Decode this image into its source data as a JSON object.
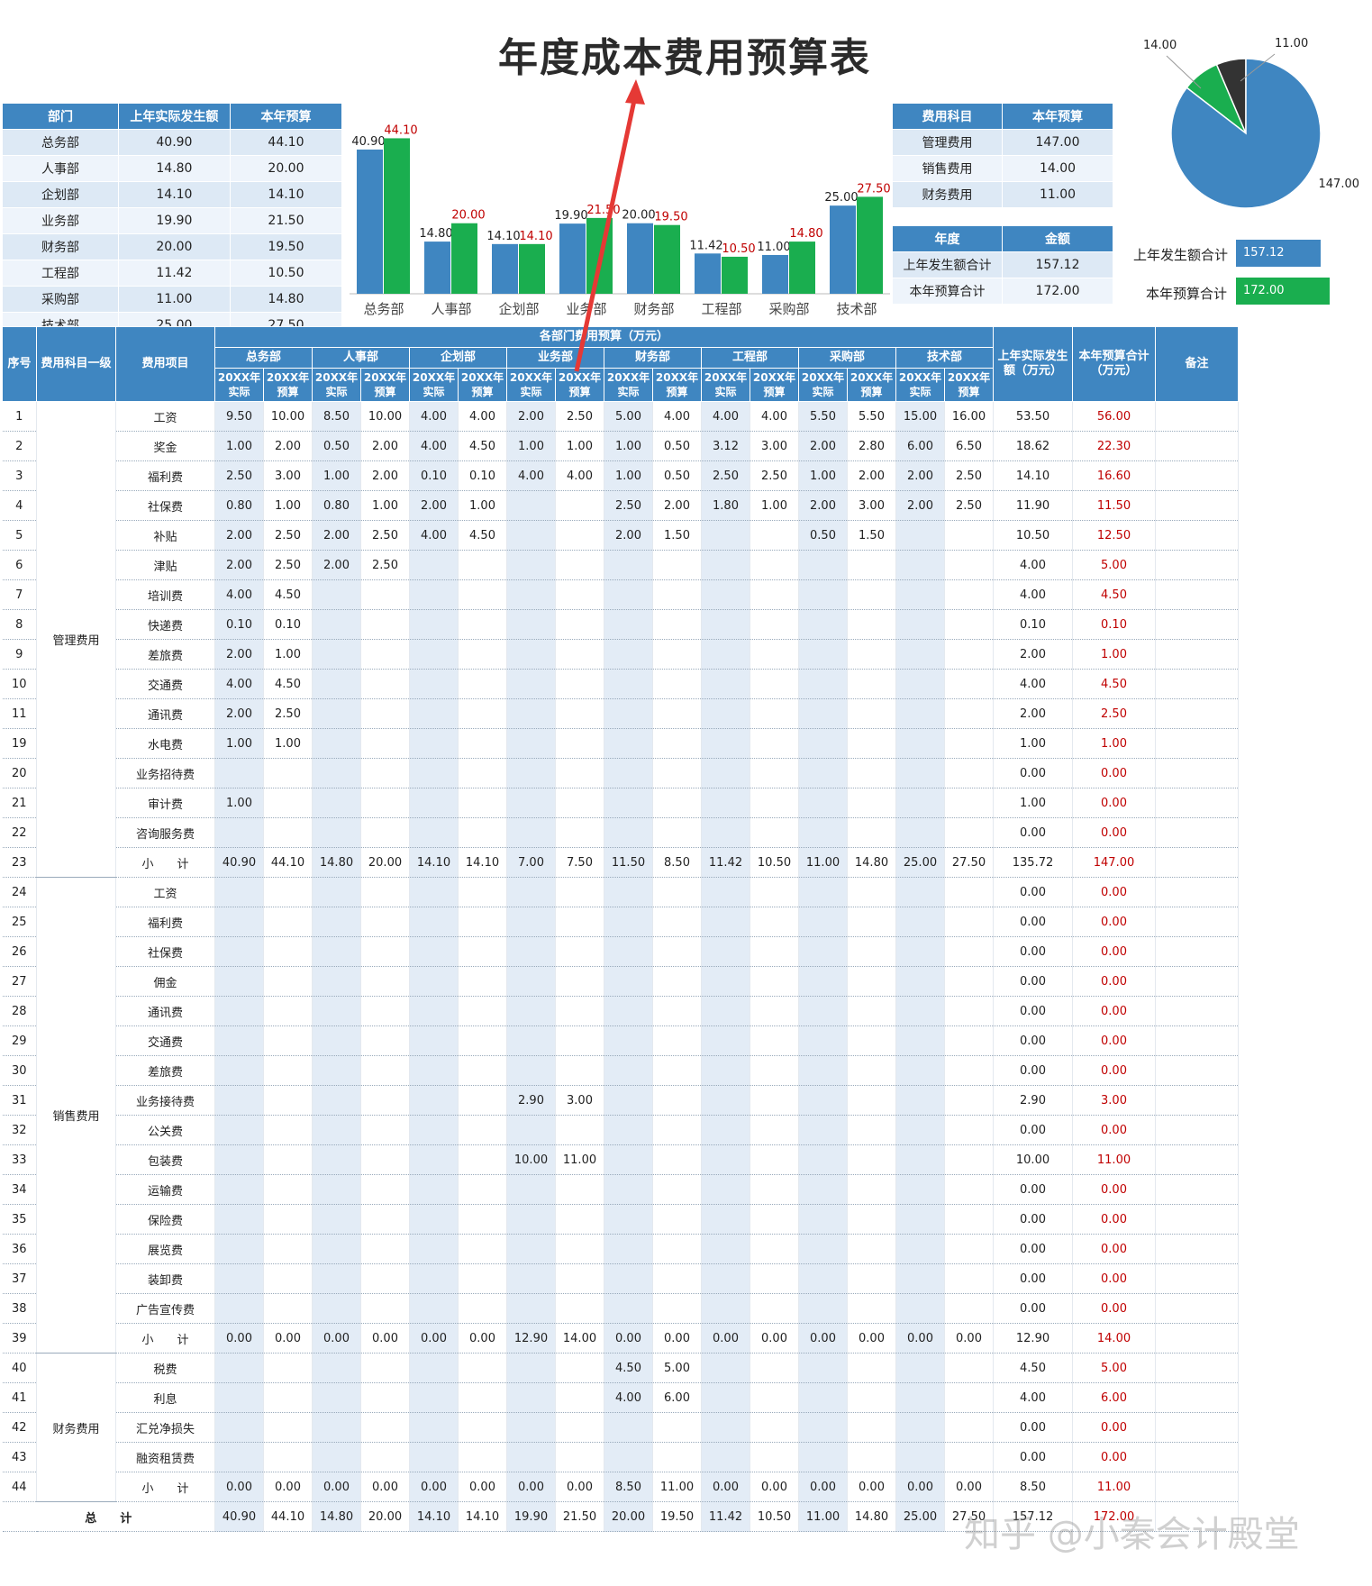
{
  "title": "年度成本费用预算表",
  "dept_table": {
    "headers": [
      "部门",
      "上年实际发生额",
      "本年预算"
    ],
    "rows": [
      [
        "总务部",
        "40.90",
        "44.10"
      ],
      [
        "人事部",
        "14.80",
        "20.00"
      ],
      [
        "企划部",
        "14.10",
        "14.10"
      ],
      [
        "业务部",
        "19.90",
        "21.50"
      ],
      [
        "财务部",
        "20.00",
        "19.50"
      ],
      [
        "工程部",
        "11.42",
        "10.50"
      ],
      [
        "采购部",
        "11.00",
        "14.80"
      ],
      [
        "技术部",
        "25.00",
        "27.50"
      ]
    ]
  },
  "chart_data": [
    {
      "type": "bar",
      "categories": [
        "总务部",
        "人事部",
        "企划部",
        "业务部",
        "财务部",
        "工程部",
        "采购部",
        "技术部"
      ],
      "series": [
        {
          "name": "上年实际发生额",
          "values": [
            40.9,
            14.8,
            14.1,
            19.9,
            20.0,
            11.42,
            11.0,
            25.0
          ],
          "labels": [
            "40.90",
            "14.80",
            "14.10",
            "19.90",
            "20.00",
            "11.42",
            "11.00",
            "25.00"
          ],
          "color": "#3f86c1"
        },
        {
          "name": "本年预算",
          "values": [
            44.1,
            20.0,
            14.1,
            21.5,
            19.5,
            10.5,
            14.8,
            27.5
          ],
          "labels": [
            "44.10",
            "20.00",
            "14.10",
            "21.50",
            "19.50",
            "10.50",
            "14.80",
            "27.50"
          ],
          "color": "#1aae4f"
        }
      ],
      "ylim": [
        0,
        46
      ],
      "grid": false,
      "title": "",
      "xlabel": "",
      "ylabel": ""
    },
    {
      "type": "pie",
      "categories": [
        "管理费用",
        "销售费用",
        "财务费用"
      ],
      "values": [
        147.0,
        14.0,
        11.0
      ],
      "labels": [
        "147.00",
        "14.00",
        "11.00"
      ],
      "colors": [
        "#3f86c1",
        "#1aae4f",
        "#333333"
      ],
      "title": ""
    }
  ],
  "subject_table": {
    "headers": [
      "费用科目",
      "本年预算"
    ],
    "rows": [
      [
        "管理费用",
        "147.00"
      ],
      [
        "销售费用",
        "14.00"
      ],
      [
        "财务费用",
        "11.00"
      ]
    ]
  },
  "year_table": {
    "headers": [
      "年度",
      "金额"
    ],
    "rows": [
      [
        "上年发生额合计",
        "157.12"
      ],
      [
        "本年预算合计",
        "172.00"
      ]
    ]
  },
  "totals": {
    "prev_label": "上年发生额合计",
    "prev_value": "157.12",
    "prev_color": "#3f86c1",
    "budget_label": "本年预算合计",
    "budget_value": "172.00",
    "budget_color": "#1aae4f"
  },
  "main": {
    "h_seq": "序号",
    "h_subject": "费用科目一级",
    "h_item": "费用项目",
    "h_group": "各部门费用预算（万元）",
    "h_prev": "上年实际发生额（万元）",
    "h_budget": "本年预算合计（万元）",
    "h_note": "备注",
    "departments": [
      "总务部",
      "人事部",
      "企划部",
      "业务部",
      "财务部",
      "工程部",
      "采购部",
      "技术部"
    ],
    "sub_actual": "20XX年实际",
    "sub_budget": "20XX年预算",
    "groups": [
      {
        "name": "管理费用",
        "rows": [
          [
            "1",
            "工资",
            "9.50",
            "10.00",
            "8.50",
            "10.00",
            "4.00",
            "4.00",
            "2.00",
            "2.50",
            "5.00",
            "4.00",
            "4.00",
            "4.00",
            "5.50",
            "5.50",
            "15.00",
            "16.00",
            "53.50",
            "56.00"
          ],
          [
            "2",
            "奖金",
            "1.00",
            "2.00",
            "0.50",
            "2.00",
            "4.00",
            "4.50",
            "1.00",
            "1.00",
            "1.00",
            "0.50",
            "3.12",
            "3.00",
            "2.00",
            "2.80",
            "6.00",
            "6.50",
            "18.62",
            "22.30"
          ],
          [
            "3",
            "福利费",
            "2.50",
            "3.00",
            "1.00",
            "2.00",
            "0.10",
            "0.10",
            "4.00",
            "4.00",
            "1.00",
            "0.50",
            "2.50",
            "2.50",
            "1.00",
            "2.00",
            "2.00",
            "2.50",
            "14.10",
            "16.60"
          ],
          [
            "4",
            "社保费",
            "0.80",
            "1.00",
            "0.80",
            "1.00",
            "2.00",
            "1.00",
            "",
            "",
            "2.50",
            "2.00",
            "1.80",
            "1.00",
            "2.00",
            "3.00",
            "2.00",
            "2.50",
            "11.90",
            "11.50"
          ],
          [
            "5",
            "补贴",
            "2.00",
            "2.50",
            "2.00",
            "2.50",
            "4.00",
            "4.50",
            "",
            "",
            "2.00",
            "1.50",
            "",
            "",
            "0.50",
            "1.50",
            "",
            "",
            "10.50",
            "12.50"
          ],
          [
            "6",
            "津贴",
            "2.00",
            "2.50",
            "2.00",
            "2.50",
            "",
            "",
            "",
            "",
            "",
            "",
            "",
            "",
            "",
            "",
            "",
            "",
            "4.00",
            "5.00"
          ],
          [
            "7",
            "培训费",
            "4.00",
            "4.50",
            "",
            "",
            "",
            "",
            "",
            "",
            "",
            "",
            "",
            "",
            "",
            "",
            "",
            "",
            "4.00",
            "4.50"
          ],
          [
            "8",
            "快递费",
            "0.10",
            "0.10",
            "",
            "",
            "",
            "",
            "",
            "",
            "",
            "",
            "",
            "",
            "",
            "",
            "",
            "",
            "0.10",
            "0.10"
          ],
          [
            "9",
            "差旅费",
            "2.00",
            "1.00",
            "",
            "",
            "",
            "",
            "",
            "",
            "",
            "",
            "",
            "",
            "",
            "",
            "",
            "",
            "2.00",
            "1.00"
          ],
          [
            "10",
            "交通费",
            "4.00",
            "4.50",
            "",
            "",
            "",
            "",
            "",
            "",
            "",
            "",
            "",
            "",
            "",
            "",
            "",
            "",
            "4.00",
            "4.50"
          ],
          [
            "11",
            "通讯费",
            "2.00",
            "2.50",
            "",
            "",
            "",
            "",
            "",
            "",
            "",
            "",
            "",
            "",
            "",
            "",
            "",
            "",
            "2.00",
            "2.50"
          ],
          [
            "19",
            "水电费",
            "1.00",
            "1.00",
            "",
            "",
            "",
            "",
            "",
            "",
            "",
            "",
            "",
            "",
            "",
            "",
            "",
            "",
            "1.00",
            "1.00"
          ],
          [
            "20",
            "业务招待费",
            "",
            "",
            "",
            "",
            "",
            "",
            "",
            "",
            "",
            "",
            "",
            "",
            "",
            "",
            "",
            "",
            "0.00",
            "0.00"
          ],
          [
            "21",
            "审计费",
            "1.00",
            "",
            "",
            "",
            "",
            "",
            "",
            "",
            "",
            "",
            "",
            "",
            "",
            "",
            "",
            "",
            "1.00",
            "0.00"
          ],
          [
            "22",
            "咨询服务费",
            "",
            "",
            "",
            "",
            "",
            "",
            "",
            "",
            "",
            "",
            "",
            "",
            "",
            "",
            "",
            "",
            "0.00",
            "0.00"
          ],
          [
            "23",
            "小　　计",
            "40.90",
            "44.10",
            "14.80",
            "20.00",
            "14.10",
            "14.10",
            "7.00",
            "7.50",
            "11.50",
            "8.50",
            "11.42",
            "10.50",
            "11.00",
            "14.80",
            "25.00",
            "27.50",
            "135.72",
            "147.00"
          ]
        ]
      },
      {
        "name": "销售费用",
        "rows": [
          [
            "24",
            "工资",
            "",
            "",
            "",
            "",
            "",
            "",
            "",
            "",
            "",
            "",
            "",
            "",
            "",
            "",
            "",
            "",
            "0.00",
            "0.00"
          ],
          [
            "25",
            "福利费",
            "",
            "",
            "",
            "",
            "",
            "",
            "",
            "",
            "",
            "",
            "",
            "",
            "",
            "",
            "",
            "",
            "0.00",
            "0.00"
          ],
          [
            "26",
            "社保费",
            "",
            "",
            "",
            "",
            "",
            "",
            "",
            "",
            "",
            "",
            "",
            "",
            "",
            "",
            "",
            "",
            "0.00",
            "0.00"
          ],
          [
            "27",
            "佣金",
            "",
            "",
            "",
            "",
            "",
            "",
            "",
            "",
            "",
            "",
            "",
            "",
            "",
            "",
            "",
            "",
            "0.00",
            "0.00"
          ],
          [
            "28",
            "通讯费",
            "",
            "",
            "",
            "",
            "",
            "",
            "",
            "",
            "",
            "",
            "",
            "",
            "",
            "",
            "",
            "",
            "0.00",
            "0.00"
          ],
          [
            "29",
            "交通费",
            "",
            "",
            "",
            "",
            "",
            "",
            "",
            "",
            "",
            "",
            "",
            "",
            "",
            "",
            "",
            "",
            "0.00",
            "0.00"
          ],
          [
            "30",
            "差旅费",
            "",
            "",
            "",
            "",
            "",
            "",
            "",
            "",
            "",
            "",
            "",
            "",
            "",
            "",
            "",
            "",
            "0.00",
            "0.00"
          ],
          [
            "31",
            "业务接待费",
            "",
            "",
            "",
            "",
            "",
            "",
            "2.90",
            "3.00",
            "",
            "",
            "",
            "",
            "",
            "",
            "",
            "",
            "2.90",
            "3.00"
          ],
          [
            "32",
            "公关费",
            "",
            "",
            "",
            "",
            "",
            "",
            "",
            "",
            "",
            "",
            "",
            "",
            "",
            "",
            "",
            "",
            "0.00",
            "0.00"
          ],
          [
            "33",
            "包装费",
            "",
            "",
            "",
            "",
            "",
            "",
            "10.00",
            "11.00",
            "",
            "",
            "",
            "",
            "",
            "",
            "",
            "",
            "10.00",
            "11.00"
          ],
          [
            "34",
            "运输费",
            "",
            "",
            "",
            "",
            "",
            "",
            "",
            "",
            "",
            "",
            "",
            "",
            "",
            "",
            "",
            "",
            "0.00",
            "0.00"
          ],
          [
            "35",
            "保险费",
            "",
            "",
            "",
            "",
            "",
            "",
            "",
            "",
            "",
            "",
            "",
            "",
            "",
            "",
            "",
            "",
            "0.00",
            "0.00"
          ],
          [
            "36",
            "展览费",
            "",
            "",
            "",
            "",
            "",
            "",
            "",
            "",
            "",
            "",
            "",
            "",
            "",
            "",
            "",
            "",
            "0.00",
            "0.00"
          ],
          [
            "37",
            "装卸费",
            "",
            "",
            "",
            "",
            "",
            "",
            "",
            "",
            "",
            "",
            "",
            "",
            "",
            "",
            "",
            "",
            "0.00",
            "0.00"
          ],
          [
            "38",
            "广告宣传费",
            "",
            "",
            "",
            "",
            "",
            "",
            "",
            "",
            "",
            "",
            "",
            "",
            "",
            "",
            "",
            "",
            "0.00",
            "0.00"
          ],
          [
            "39",
            "小　　计",
            "0.00",
            "0.00",
            "0.00",
            "0.00",
            "0.00",
            "0.00",
            "12.90",
            "14.00",
            "0.00",
            "0.00",
            "0.00",
            "0.00",
            "0.00",
            "0.00",
            "0.00",
            "0.00",
            "12.90",
            "14.00"
          ]
        ]
      },
      {
        "name": "财务费用",
        "rows": [
          [
            "40",
            "税费",
            "",
            "",
            "",
            "",
            "",
            "",
            "",
            "",
            "4.50",
            "5.00",
            "",
            "",
            "",
            "",
            "",
            "",
            "4.50",
            "5.00"
          ],
          [
            "41",
            "利息",
            "",
            "",
            "",
            "",
            "",
            "",
            "",
            "",
            "4.00",
            "6.00",
            "",
            "",
            "",
            "",
            "",
            "",
            "4.00",
            "6.00"
          ],
          [
            "42",
            "汇兑净损失",
            "",
            "",
            "",
            "",
            "",
            "",
            "",
            "",
            "",
            "",
            "",
            "",
            "",
            "",
            "",
            "",
            "0.00",
            "0.00"
          ],
          [
            "43",
            "融资租赁费",
            "",
            "",
            "",
            "",
            "",
            "",
            "",
            "",
            "",
            "",
            "",
            "",
            "",
            "",
            "",
            "",
            "0.00",
            "0.00"
          ],
          [
            "44",
            "小　　计",
            "0.00",
            "0.00",
            "0.00",
            "0.00",
            "0.00",
            "0.00",
            "0.00",
            "0.00",
            "8.50",
            "11.00",
            "0.00",
            "0.00",
            "0.00",
            "0.00",
            "0.00",
            "0.00",
            "8.50",
            "11.00"
          ]
        ]
      }
    ],
    "total_label": "总　　计",
    "total_row": [
      "40.90",
      "44.10",
      "14.80",
      "20.00",
      "14.10",
      "14.10",
      "19.90",
      "21.50",
      "20.00",
      "19.50",
      "11.42",
      "10.50",
      "11.00",
      "14.80",
      "25.00",
      "27.50",
      "157.12",
      "172.00"
    ]
  },
  "watermark": "知乎 @小秦会计殿堂",
  "colors": {
    "header": "#3f86c1",
    "bar_prev": "#3f86c1",
    "bar_budget": "#1aae4f",
    "red": "#c00000",
    "arrow": "#e53935"
  }
}
